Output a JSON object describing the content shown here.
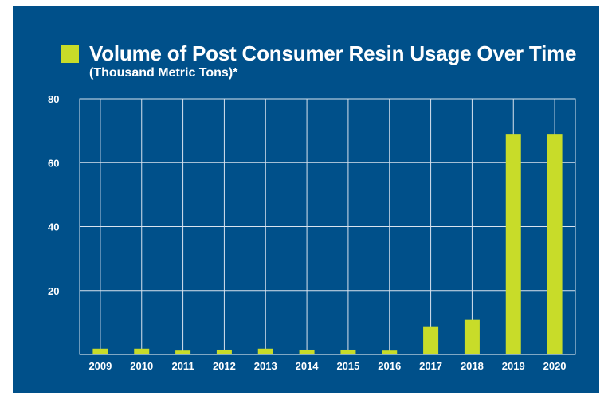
{
  "colors": {
    "background": "#00508a",
    "bar": "#c8dc29",
    "grid": "#d9e3ee",
    "text": "#ffffff"
  },
  "chart_data": {
    "type": "bar",
    "title": "Volume of Post Consumer Resin Usage Over Time",
    "subtitle": "(Thousand Metric Tons)*",
    "xlabel": "",
    "ylabel": "",
    "categories": [
      "2009",
      "2010",
      "2011",
      "2012",
      "2013",
      "2014",
      "2015",
      "2016",
      "2017",
      "2018",
      "2019",
      "2020"
    ],
    "values": [
      1.8,
      1.8,
      1.2,
      1.5,
      1.8,
      1.5,
      1.5,
      1.2,
      8.8,
      10.8,
      69,
      69
    ],
    "ylim": [
      0,
      80
    ],
    "yticks": [
      20,
      40,
      60,
      80
    ],
    "grid": true,
    "legend": "top-left"
  }
}
